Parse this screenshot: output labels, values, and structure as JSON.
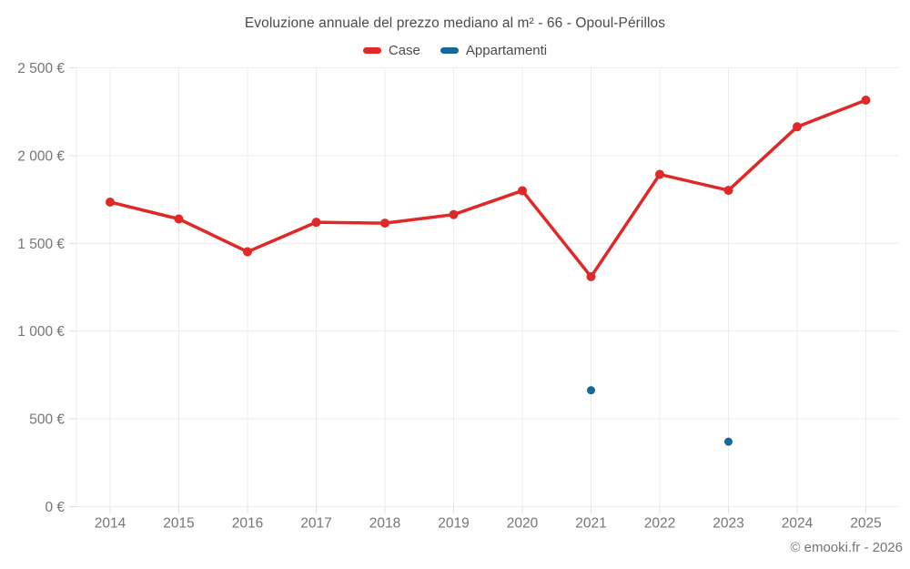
{
  "page": {
    "background_color": "#ffffff"
  },
  "chart_data": {
    "type": "line",
    "title": "Evoluzione annuale del prezzo mediano al m² - 66 - Opoul-Périllos",
    "categories": [
      "2014",
      "2015",
      "2016",
      "2017",
      "2018",
      "2019",
      "2020",
      "2021",
      "2022",
      "2023",
      "2024",
      "2025"
    ],
    "series": [
      {
        "name": "Case",
        "color": "#e02826",
        "marker_radius": 5,
        "line_width": 3.5,
        "values": [
          1735,
          1639,
          1452,
          1620,
          1615,
          1664,
          1800,
          1310,
          1893,
          1802,
          2164,
          2316
        ]
      },
      {
        "name": "Appartamenti",
        "color": "#16689a",
        "marker_radius": 4.5,
        "line_width": 3.5,
        "values": [
          null,
          null,
          null,
          null,
          null,
          null,
          null,
          663,
          null,
          370,
          null,
          null
        ]
      }
    ],
    "ylim": [
      0,
      2500
    ],
    "yticks": {
      "values": [
        0,
        500,
        1000,
        1500,
        2000,
        2500
      ],
      "labels": [
        "0 €",
        "500 €",
        "1 000 €",
        "1 500 €",
        "2 000 €",
        "2 500 €"
      ]
    },
    "grid": true,
    "legend_position": "top",
    "grid_color": "#ececec",
    "tick_color": "#e0e0e0",
    "tick_label_color": "#757575"
  },
  "footer": {
    "copyright": "© emooki.fr - 2026"
  }
}
